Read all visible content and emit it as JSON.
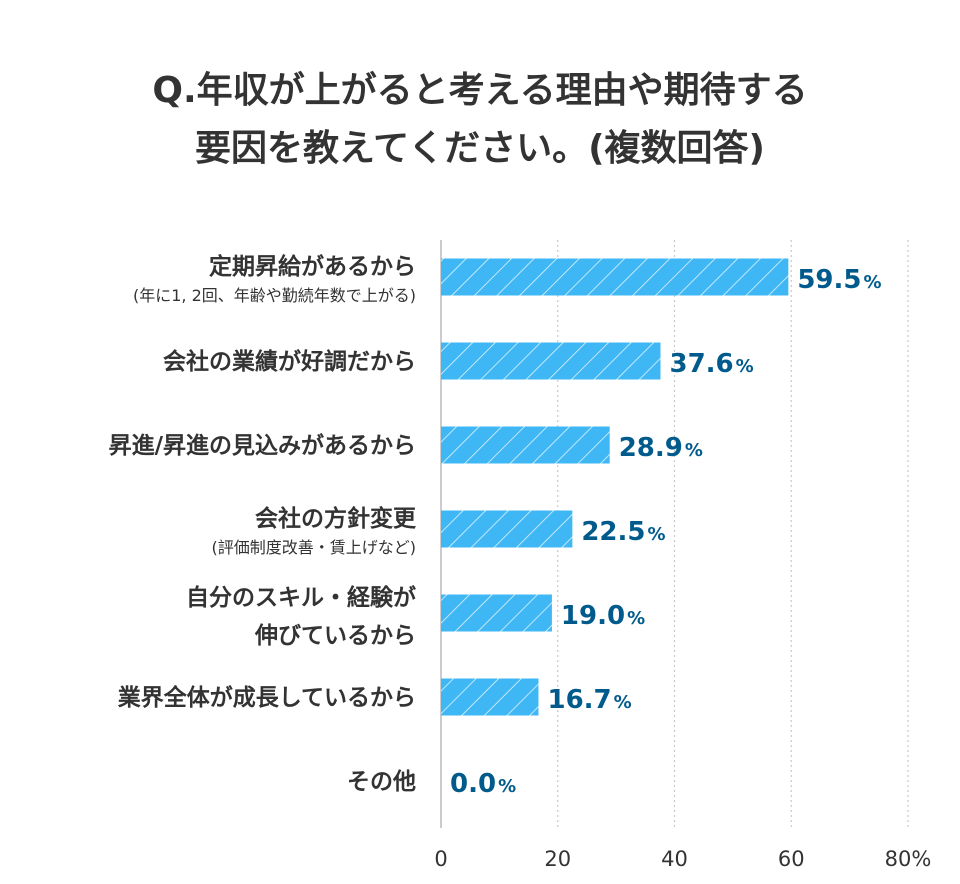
{
  "title": {
    "line1": "Q.年収が上がると考える理由や期待する",
    "line2": "要因を教えてください。(複数回答)"
  },
  "colors": {
    "bar": "#3fb7f5",
    "value_text": "#005b8c",
    "label_text": "#333333",
    "grid": "#c8c8c8",
    "axis": "#bbbbbb"
  },
  "chart_data": {
    "type": "bar",
    "orientation": "horizontal",
    "categories": [
      {
        "main": "定期昇給があるから",
        "sub": "(年に1, 2回、年齢や勤続年数で上がる)"
      },
      {
        "main": "会社の業績が好調だから",
        "sub": ""
      },
      {
        "main": "昇進/昇進の見込みがあるから",
        "sub": ""
      },
      {
        "main": "会社の方針変更",
        "sub": "(評価制度改善・賃上げなど)"
      },
      {
        "main": "自分のスキル・経験が",
        "sub2": "伸びているから"
      },
      {
        "main": "業界全体が成長しているから",
        "sub": ""
      },
      {
        "main": "その他",
        "sub": ""
      }
    ],
    "values": [
      59.5,
      37.6,
      28.9,
      22.5,
      19.0,
      16.7,
      0.0
    ],
    "value_labels": [
      "59.5",
      "37.6",
      "28.9",
      "22.5",
      "19.0",
      "16.7",
      "0.0"
    ],
    "value_unit": "%",
    "xlim": [
      0,
      80
    ],
    "x_ticks": [
      "0",
      "20",
      "40",
      "60",
      "80%"
    ],
    "grid": true,
    "bar_pattern": "diagonal-hatch"
  }
}
